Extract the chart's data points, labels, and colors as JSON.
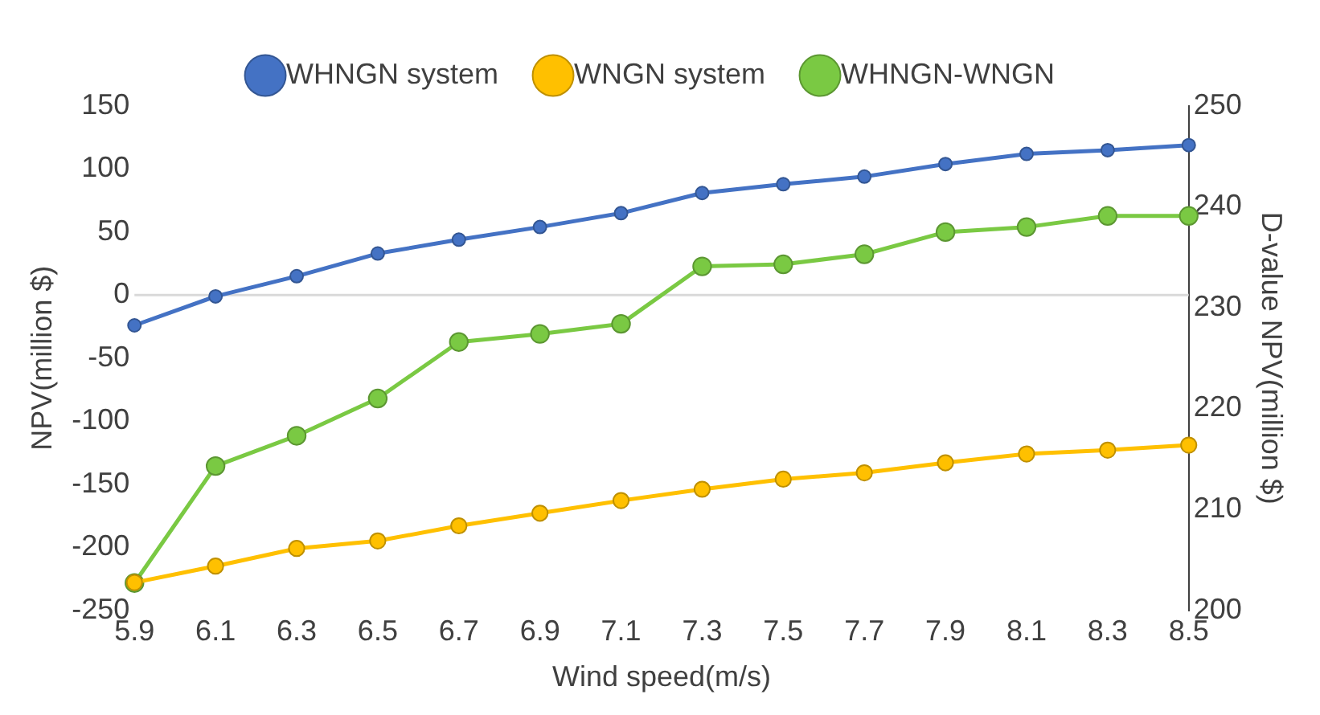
{
  "chart_data": {
    "type": "line",
    "xlabel": "Wind speed(m/s)",
    "ylabel": "NPV(million $)",
    "y2label": "D-value NPV(million $)",
    "categories": [
      "5.9",
      "6.1",
      "6.3",
      "6.5",
      "6.7",
      "6.9",
      "7.1",
      "7.3",
      "7.5",
      "7.7",
      "7.9",
      "8.1",
      "8.3",
      "8.5"
    ],
    "series": [
      {
        "name": "WHNGN system",
        "color": "#4472c4",
        "values": [
          -24,
          -1,
          15,
          33,
          44,
          54,
          65,
          81,
          88,
          94,
          104,
          112,
          115,
          119
        ]
      },
      {
        "name": "WNGN system",
        "color": "#ffc000",
        "values": [
          -228,
          -215,
          -201,
          -195,
          -183,
          -173,
          -163,
          -154,
          -146,
          -141,
          -133,
          -126,
          -123,
          -119
        ]
      },
      {
        "name": "WHNGN-WNGN",
        "color": "#7ac943",
        "axis": "y2",
        "values": [
          202.7,
          214.3,
          217.3,
          221.0,
          226.6,
          227.4,
          228.4,
          234.1,
          234.3,
          235.3,
          237.5,
          238.0,
          239.1,
          239.1
        ]
      }
    ],
    "ylim": [
      -250,
      150
    ],
    "yticks": [
      -250,
      -200,
      -150,
      -100,
      -50,
      0,
      50,
      100,
      150
    ],
    "y2lim": [
      200,
      250
    ],
    "y2ticks": [
      200,
      210,
      220,
      230,
      240,
      250
    ],
    "ref_lines": [
      {
        "axis": "y",
        "value": 0,
        "color": "#d9d9d9"
      }
    ],
    "grid": false,
    "legend": "top",
    "marker": "circle",
    "line_style": "solid"
  }
}
